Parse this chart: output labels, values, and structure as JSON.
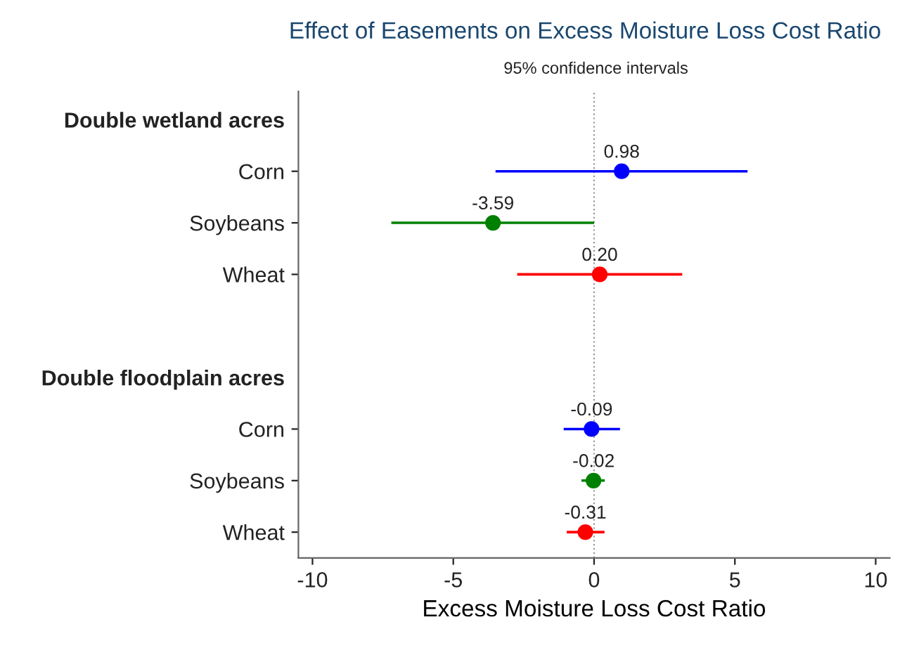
{
  "chart_data": {
    "type": "scatter",
    "orientation": "horizontal",
    "title": "Effect of Easements on Excess Moisture Loss Cost Ratio",
    "subtitle": "95% confidence intervals",
    "xlabel": "Excess Moisture Loss Cost Ratio",
    "categories": [
      "Double wetland acres",
      "Corn",
      "Soybeans",
      "Wheat",
      null,
      "Double floodplain acres",
      "Corn",
      "Soybeans",
      "Wheat"
    ],
    "series": [
      {
        "values": [
          null,
          0.98,
          -3.59,
          0.2,
          null,
          null,
          -0.09,
          -0.02,
          -0.31
        ],
        "colors": [
          null,
          "#0000ff",
          "#008000",
          "#ff0000",
          null,
          null,
          "#0000ff",
          "#008000",
          "#ff0000"
        ],
        "errors": [
          null,
          [
            -3.5,
            5.45
          ],
          [
            -7.2,
            0.0
          ],
          [
            -2.73,
            3.13
          ],
          null,
          null,
          [
            -1.08,
            0.92
          ],
          [
            -0.45,
            0.38
          ],
          [
            -0.97,
            0.37
          ]
        ],
        "value_labels": [
          null,
          "0.98",
          "-3.59",
          "0.20",
          null,
          null,
          "-0.09",
          "-0.02",
          "-0.31"
        ]
      }
    ],
    "xlim": [
      -10.5,
      10.5
    ],
    "xticks": [
      -10,
      -5,
      0,
      5,
      10
    ],
    "marker": "circle",
    "grid": false,
    "legend": false,
    "ref_lines": [
      {
        "axis": "x",
        "value": 0,
        "color": "#999999",
        "line_style": "dotted"
      }
    ]
  }
}
